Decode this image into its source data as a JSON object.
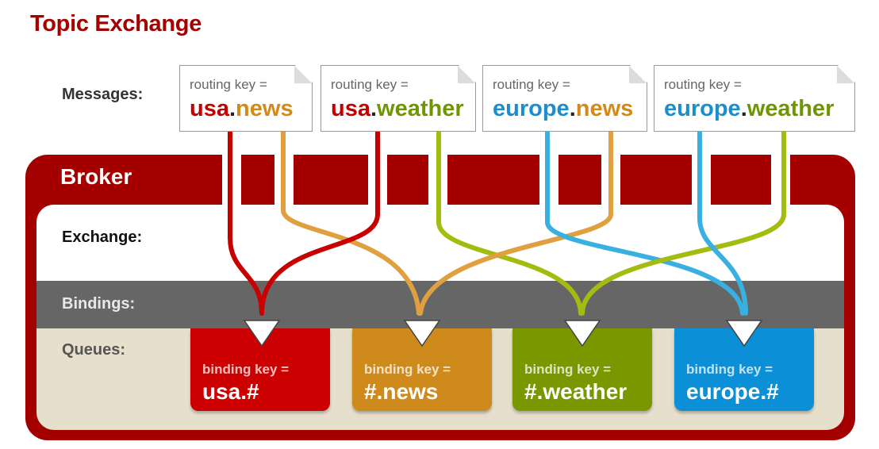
{
  "title": "Topic Exchange",
  "labels": {
    "messages": "Messages:",
    "broker": "Broker",
    "exchange": "Exchange:",
    "bindings": "Bindings:",
    "queues": "Queues:"
  },
  "messages": [
    {
      "prefix": "routing key =",
      "part1": "usa",
      "dot": ".",
      "part2": "news"
    },
    {
      "prefix": "routing key =",
      "part1": "usa",
      "dot": ".",
      "part2": "weather"
    },
    {
      "prefix": "routing key =",
      "part1": "europe",
      "dot": ".",
      "part2": "news"
    },
    {
      "prefix": "routing key =",
      "part1": "europe",
      "dot": ".",
      "part2": "weather"
    }
  ],
  "queues": [
    {
      "prefix": "binding key =",
      "key": "usa.#",
      "color": "#cc0000"
    },
    {
      "prefix": "binding key =",
      "key": "#.news",
      "color": "#cf8a1c"
    },
    {
      "prefix": "binding key =",
      "key": "#.weather",
      "color": "#7a9700"
    },
    {
      "prefix": "binding key =",
      "key": "europe.#",
      "color": "#0b8fd6"
    }
  ],
  "colors": {
    "usa": "#c40000",
    "news": "#e0a040",
    "weather": "#a4bc10",
    "europe": "#3ab0e0",
    "broker": "#a50000",
    "bindings": "#666666",
    "queues_bg": "#e5dfcb"
  }
}
